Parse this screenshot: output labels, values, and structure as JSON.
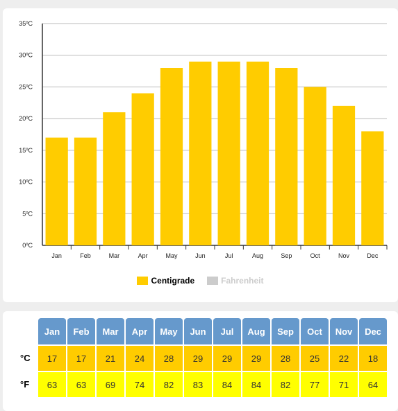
{
  "chart_data": {
    "type": "bar",
    "categories": [
      "Jan",
      "Feb",
      "Mar",
      "Apr",
      "May",
      "Jun",
      "Jul",
      "Aug",
      "Sep",
      "Oct",
      "Nov",
      "Dec"
    ],
    "series": [
      {
        "name": "Centigrade",
        "values": [
          17,
          17,
          21,
          24,
          28,
          29,
          29,
          29,
          28,
          25,
          22,
          18
        ],
        "color": "#ffcc00"
      },
      {
        "name": "Fahrenheit",
        "values": [
          63,
          63,
          69,
          74,
          82,
          83,
          84,
          84,
          82,
          77,
          71,
          64
        ],
        "color": "#cccccc",
        "hidden": true
      }
    ],
    "ylim": [
      0,
      35
    ],
    "yticks": [
      0,
      5,
      10,
      15,
      20,
      25,
      30,
      35
    ],
    "ytick_labels": [
      "0ºC",
      "5ºC",
      "10ºC",
      "15ºC",
      "20ºC",
      "25ºC",
      "30ºC",
      "35ºC"
    ],
    "grid": true,
    "legend": "bottom"
  },
  "legend": {
    "centigrade": "Centigrade",
    "fahrenheit": "Fahrenheit"
  },
  "table": {
    "months": [
      "Jan",
      "Feb",
      "Mar",
      "Apr",
      "May",
      "Jun",
      "Jul",
      "Aug",
      "Sep",
      "Oct",
      "Nov",
      "Dec"
    ],
    "c_label": "°C",
    "f_label": "°F",
    "c_values": [
      17,
      17,
      21,
      24,
      28,
      29,
      29,
      29,
      28,
      25,
      22,
      18
    ],
    "f_values": [
      63,
      63,
      69,
      74,
      82,
      83,
      84,
      84,
      82,
      77,
      71,
      64
    ]
  },
  "colors": {
    "bar": "#ffcc00",
    "header": "#6699cc",
    "c_row": "#ffcc00",
    "f_row": "#ffff00"
  }
}
